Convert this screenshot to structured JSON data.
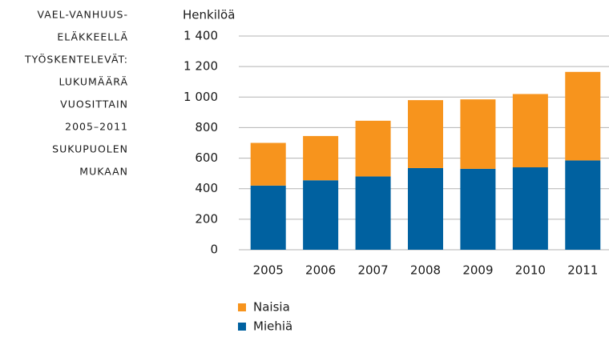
{
  "chart_data": {
    "type": "stacked_bar",
    "title": [
      "VAEL-VANHUUS-",
      "ELÄKKEELLÄ",
      "TYÖSKENTELEVÄT:",
      "LUKUMÄÄRÄ",
      "VUOSITTAIN",
      "2005–2011",
      "SUKUPUOLEN",
      "MUKAAN"
    ],
    "y_label": "Henkilöä",
    "categories": [
      "2005",
      "2006",
      "2007",
      "2008",
      "2009",
      "2010",
      "2011"
    ],
    "series": [
      {
        "name": "Miehiä",
        "color": "#0061a0",
        "values": [
          420,
          455,
          480,
          535,
          530,
          540,
          585
        ]
      },
      {
        "name": "Naisia",
        "color": "#f7941d",
        "values": [
          280,
          290,
          365,
          445,
          455,
          480,
          580
        ]
      }
    ],
    "ylim": [
      0,
      1400
    ],
    "yticks": [
      0,
      200,
      400,
      600,
      800,
      {
        "value": 1000,
        "label": "1 000"
      },
      {
        "value": 1200,
        "label": "1 200"
      },
      {
        "value": 1400,
        "label": "1 400"
      }
    ],
    "grid": true
  }
}
